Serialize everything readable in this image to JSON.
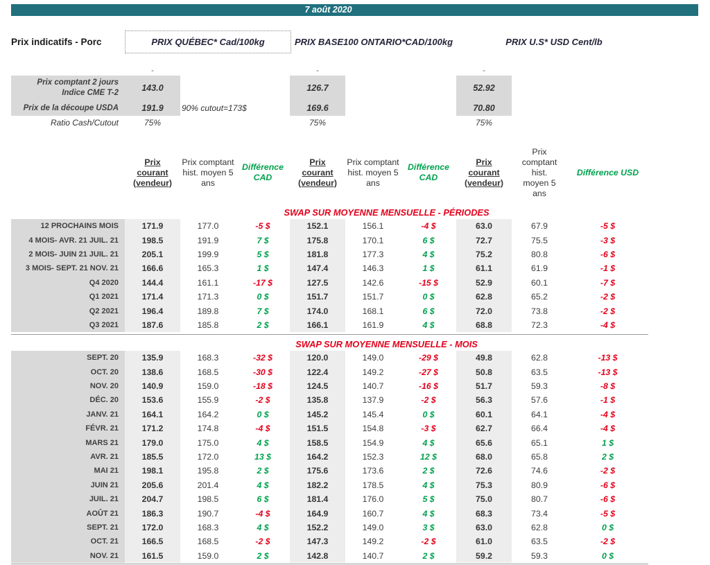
{
  "header": {
    "date": "7 août 2020",
    "page_title": "Prix indicatifs - Porc",
    "group_titles": {
      "quebec": "PRIX QUÉBEC* Cad/100kg",
      "ontario": "PRIX BASE100 ONTARIO*CAD/100kg",
      "us": "PRIX U.S* USD Cent/lb"
    }
  },
  "colors": {
    "accent_teal": "#20707E",
    "negative_red": "#E3001B",
    "positive_green": "#00A14E",
    "label_gray": "#D9D9D9",
    "column_gray": "#EDEDED"
  },
  "summary": {
    "placeholder": "-",
    "rows": [
      {
        "label_line1": "Prix comptant 2 jours",
        "label_line2": "Indice CME T-2",
        "quebec": "143.0",
        "note": "",
        "ontario": "126.7",
        "us": "52.92"
      },
      {
        "label_line1": "Prix de la découpe USDA",
        "label_line2": "",
        "quebec": "191.9",
        "note": "90% cutout=173$",
        "ontario": "169.6",
        "us": "70.80"
      },
      {
        "label_line1": "Ratio Cash/Cutout",
        "label_line2": "",
        "quebec": "75%",
        "note": "",
        "ontario": "75%",
        "us": "75%"
      }
    ]
  },
  "column_headers": {
    "prix_courant": "Prix courant (vendeur)",
    "prix_comptant": "Prix comptant hist. moyen 5 ans",
    "difference_cad": "Différence CAD",
    "difference_usd": "Différence USD"
  },
  "table": {
    "sections": [
      {
        "title": "SWAP SUR MOYENNE MENSUELLE - PÉRIODES",
        "rows": [
          {
            "label": "12 PROCHAINS MOIS",
            "values": [
              "171.9",
              "177.0",
              "-5 $",
              "152.1",
              "156.1",
              "-4 $",
              "63.0",
              "67.9",
              "-5 $"
            ]
          },
          {
            "label": "4 MOIS- AVR. 21 JUIL. 21",
            "values": [
              "198.5",
              "191.9",
              "7 $",
              "175.8",
              "170.1",
              "6 $",
              "72.7",
              "75.5",
              "-3 $"
            ]
          },
          {
            "label": "2 MOIS- JUIN 21 JUIL. 21",
            "values": [
              "205.1",
              "199.9",
              "5 $",
              "181.8",
              "177.3",
              "4 $",
              "75.2",
              "80.8",
              "-6 $"
            ]
          },
          {
            "label": "3 MOIS- SEPT. 21 NOV. 21",
            "values": [
              "166.6",
              "165.3",
              "1 $",
              "147.4",
              "146.3",
              "1 $",
              "61.1",
              "61.9",
              "-1 $"
            ]
          },
          {
            "label": "Q4 2020",
            "values": [
              "144.4",
              "161.1",
              "-17 $",
              "127.5",
              "142.6",
              "-15 $",
              "52.9",
              "60.1",
              "-7 $"
            ]
          },
          {
            "label": "Q1 2021",
            "values": [
              "171.4",
              "171.3",
              "0 $",
              "151.7",
              "151.7",
              "0 $",
              "62.8",
              "65.2",
              "-2 $"
            ]
          },
          {
            "label": "Q2 2021",
            "values": [
              "196.4",
              "189.8",
              "7 $",
              "174.0",
              "168.1",
              "6 $",
              "72.0",
              "73.8",
              "-2 $"
            ]
          },
          {
            "label": "Q3 2021",
            "values": [
              "187.6",
              "185.8",
              "2 $",
              "166.1",
              "161.9",
              "4 $",
              "68.8",
              "72.3",
              "-4 $"
            ]
          }
        ]
      },
      {
        "title": "SWAP SUR MOYENNE MENSUELLE - MOIS",
        "rows": [
          {
            "label": "SEPT. 20",
            "values": [
              "135.9",
              "168.3",
              "-32 $",
              "120.0",
              "149.0",
              "-29 $",
              "49.8",
              "62.8",
              "-13 $"
            ]
          },
          {
            "label": "OCT. 20",
            "values": [
              "138.6",
              "168.5",
              "-30 $",
              "122.4",
              "149.2",
              "-27 $",
              "50.8",
              "63.5",
              "-13 $"
            ]
          },
          {
            "label": "NOV. 20",
            "values": [
              "140.9",
              "159.0",
              "-18 $",
              "124.5",
              "140.7",
              "-16 $",
              "51.7",
              "59.3",
              "-8 $"
            ]
          },
          {
            "label": "DÉC. 20",
            "values": [
              "153.6",
              "155.9",
              "-2 $",
              "135.8",
              "137.9",
              "-2 $",
              "56.3",
              "57.6",
              "-1 $"
            ]
          },
          {
            "label": "JANV. 21",
            "values": [
              "164.1",
              "164.2",
              "0 $",
              "145.2",
              "145.4",
              "0 $",
              "60.1",
              "64.1",
              "-4 $"
            ]
          },
          {
            "label": "FÉVR. 21",
            "values": [
              "171.2",
              "174.8",
              "-4 $",
              "151.5",
              "154.8",
              "-3 $",
              "62.7",
              "66.4",
              "-4 $"
            ]
          },
          {
            "label": "MARS 21",
            "values": [
              "179.0",
              "175.0",
              "4 $",
              "158.5",
              "154.9",
              "4 $",
              "65.6",
              "65.1",
              "1 $"
            ]
          },
          {
            "label": "AVR. 21",
            "values": [
              "185.5",
              "172.0",
              "13 $",
              "164.2",
              "152.3",
              "12 $",
              "68.0",
              "65.8",
              "2 $"
            ]
          },
          {
            "label": "MAI 21",
            "values": [
              "198.1",
              "195.8",
              "2 $",
              "175.6",
              "173.6",
              "2 $",
              "72.6",
              "74.6",
              "-2 $"
            ]
          },
          {
            "label": "JUIN 21",
            "values": [
              "205.6",
              "201.4",
              "4 $",
              "182.2",
              "178.5",
              "4 $",
              "75.3",
              "80.9",
              "-6 $"
            ]
          },
          {
            "label": "JUIL. 21",
            "values": [
              "204.7",
              "198.5",
              "6 $",
              "181.4",
              "176.0",
              "5 $",
              "75.0",
              "80.7",
              "-6 $"
            ]
          },
          {
            "label": "AOÛT 21",
            "values": [
              "186.3",
              "190.7",
              "-4 $",
              "164.9",
              "160.7",
              "4 $",
              "68.3",
              "73.4",
              "-5 $"
            ]
          },
          {
            "label": "SEPT. 21",
            "values": [
              "172.0",
              "168.3",
              "4 $",
              "152.2",
              "149.0",
              "3 $",
              "63.0",
              "62.8",
              "0 $"
            ]
          },
          {
            "label": "OCT. 21",
            "values": [
              "166.5",
              "168.5",
              "-2 $",
              "147.3",
              "149.2",
              "-2 $",
              "61.0",
              "63.5",
              "-2 $"
            ]
          },
          {
            "label": "NOV. 21",
            "values": [
              "161.5",
              "159.0",
              "2 $",
              "142.8",
              "140.7",
              "2 $",
              "59.2",
              "59.3",
              "0 $"
            ]
          }
        ]
      }
    ]
  }
}
